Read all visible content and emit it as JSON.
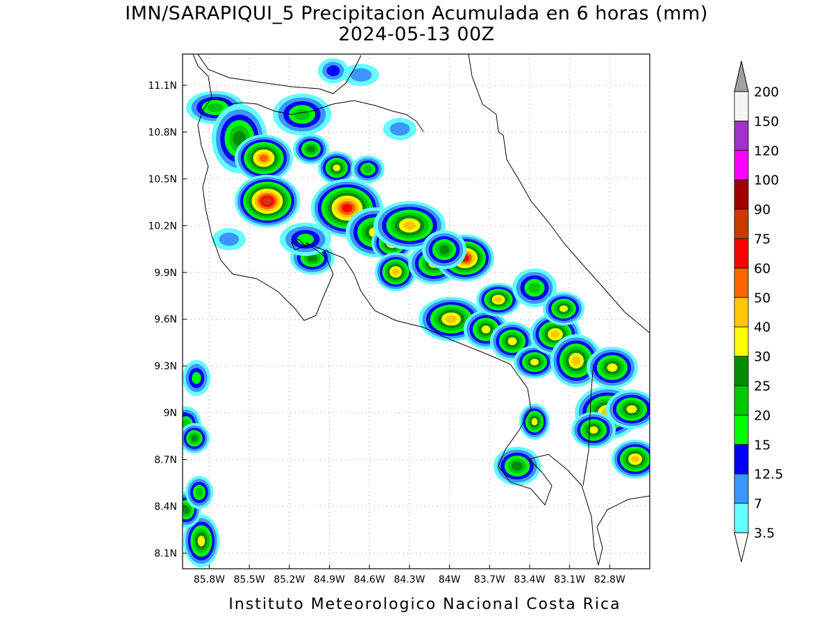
{
  "title": "IMN/SARAPIQUI_5 Precipitacion Acumulada en 6 horas (mm)",
  "subtitle": "2024-05-13 00Z",
  "map": {
    "lon_range": [
      -86.0,
      -82.5
    ],
    "lat_range": [
      8.0,
      11.3
    ],
    "lon_ticks": [
      {
        "value": -85.8,
        "label": "85.8W"
      },
      {
        "value": -85.5,
        "label": "85.5W"
      },
      {
        "value": -85.2,
        "label": "85.2W"
      },
      {
        "value": -84.9,
        "label": "84.9W"
      },
      {
        "value": -84.6,
        "label": "84.6W"
      },
      {
        "value": -84.3,
        "label": "84.3W"
      },
      {
        "value": -84,
        "label": "84W"
      },
      {
        "value": -83.7,
        "label": "83.7W"
      },
      {
        "value": -83.4,
        "label": "83.4W"
      },
      {
        "value": -83.1,
        "label": "83.1W"
      },
      {
        "value": -82.8,
        "label": "82.8W"
      }
    ],
    "lat_ticks": [
      {
        "value": 8.1,
        "label": "8.1N"
      },
      {
        "value": 8.4,
        "label": "8.4N"
      },
      {
        "value": 8.7,
        "label": "8.7N"
      },
      {
        "value": 9,
        "label": "9N"
      },
      {
        "value": 9.3,
        "label": "9.3N"
      },
      {
        "value": 9.6,
        "label": "9.6N"
      },
      {
        "value": 9.9,
        "label": "9.9N"
      },
      {
        "value": 10.2,
        "label": "10.2N"
      },
      {
        "value": 10.5,
        "label": "10.5N"
      },
      {
        "value": 10.8,
        "label": "10.8N"
      },
      {
        "value": 11.1,
        "label": "11.1N"
      }
    ],
    "grid": true
  },
  "colorbar": {
    "levels": [
      3.5,
      7,
      12.5,
      15,
      20,
      25,
      30,
      40,
      50,
      60,
      75,
      90,
      100,
      120,
      150,
      200
    ],
    "colors": [
      "#64ffff",
      "#3c96ff",
      "#0000ff",
      "#00ff00",
      "#00c800",
      "#008c00",
      "#ffff00",
      "#ffc800",
      "#ff6400",
      "#ff0000",
      "#c83c00",
      "#a00000",
      "#ff00ff",
      "#a032c8",
      "#f5f5f5"
    ],
    "under_color": "#ffffff",
    "over_color": "#a0a0a0"
  },
  "footer": "Instituto Meteorologico Nacional Costa Rica"
}
